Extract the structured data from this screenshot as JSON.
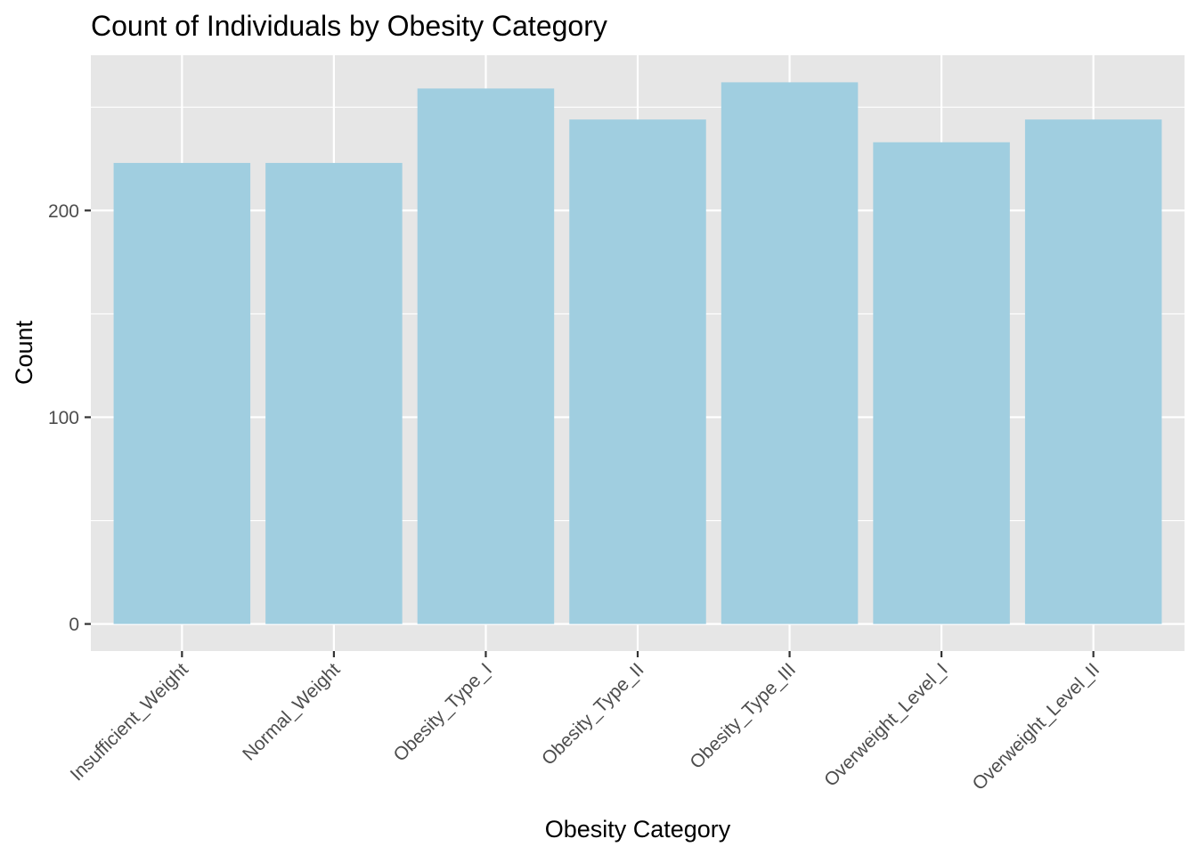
{
  "chart_data": {
    "type": "bar",
    "title": "Count of Individuals by Obesity Category",
    "xlabel": "Obesity Category",
    "ylabel": "Count",
    "categories": [
      "Insufficient_Weight",
      "Normal_Weight",
      "Obesity_Type_I",
      "Obesity_Type_II",
      "Obesity_Type_III",
      "Overweight_Level_I",
      "Overweight_Level_II"
    ],
    "values": [
      223,
      223,
      259,
      244,
      262,
      233,
      244
    ],
    "ylim": [
      -13.1,
      275.1
    ],
    "yticks": [
      0,
      100,
      200
    ],
    "ytick_labels": [
      "0",
      "100",
      "200"
    ],
    "grid": true,
    "legend": "none",
    "colors": {
      "bar": "#a0cee0",
      "panel_background": "#e6e6e6",
      "grid": "#ffffff",
      "tick_text": "#4d4d4d",
      "tick_mark": "#333333"
    }
  }
}
